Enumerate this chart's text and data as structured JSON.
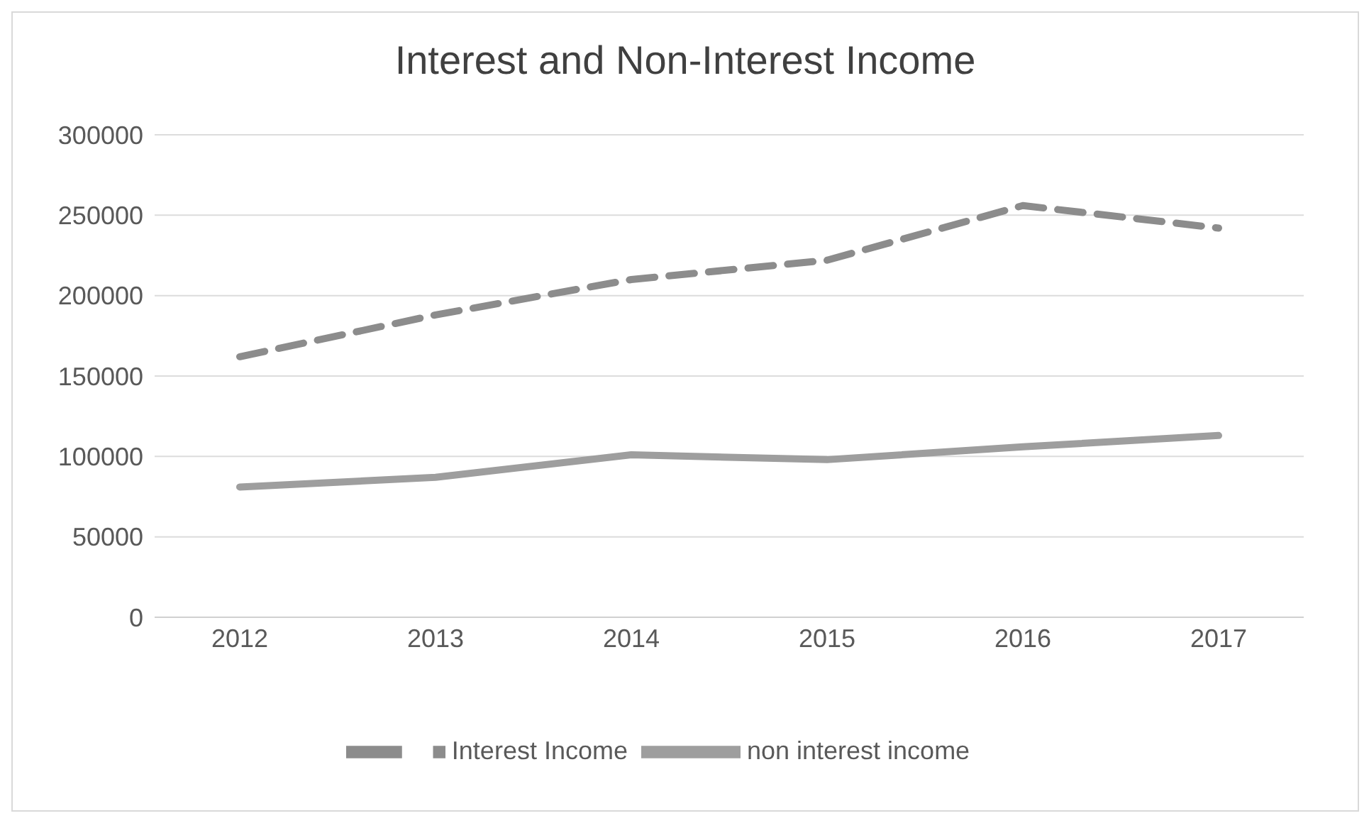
{
  "chart_data": {
    "type": "line",
    "title": "Interest and Non-Interest Income",
    "categories": [
      "2012",
      "2013",
      "2014",
      "2015",
      "2016",
      "2017"
    ],
    "series": [
      {
        "name": "Interest Income",
        "color": "#8c8c8c",
        "line_style": "dashed",
        "values": [
          162000,
          188000,
          210000,
          222000,
          256000,
          242000
        ]
      },
      {
        "name": "non interest income",
        "color": "#9e9e9e",
        "line_style": "solid",
        "values": [
          81000,
          87000,
          101000,
          98000,
          106000,
          113000
        ]
      }
    ],
    "ylim": [
      0,
      300000
    ],
    "yticks": [
      0,
      50000,
      100000,
      150000,
      200000,
      250000,
      300000
    ],
    "grid": "y",
    "legend": "bottom",
    "marker": "none"
  }
}
